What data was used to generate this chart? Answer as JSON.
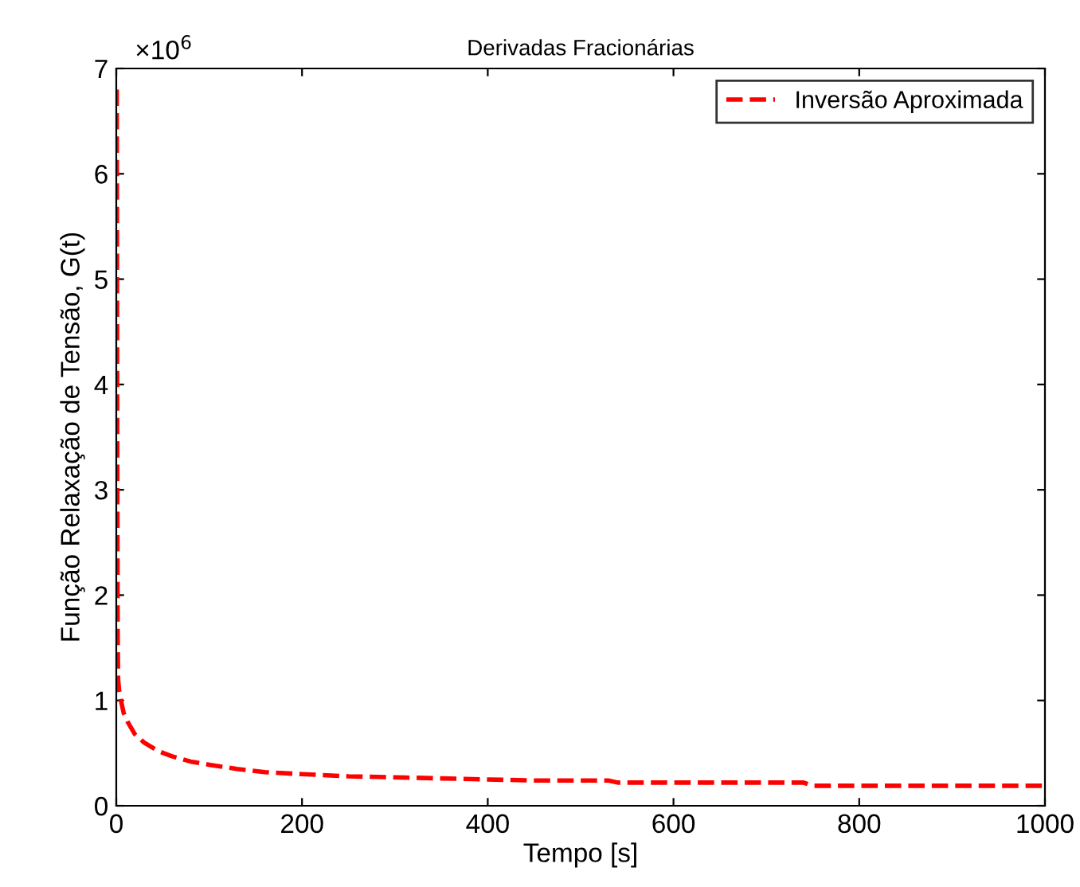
{
  "chart_data": {
    "type": "line",
    "title": "Derivadas Fracionárias",
    "xlabel": "Tempo [s]",
    "ylabel": "Função Relaxação de Tensão, G(t)",
    "annotations": [
      "×10$^{6}$"
    ],
    "series": [
      {
        "name": "Inversão Aproximada",
        "color": "#ff0000",
        "x": [
          0.5,
          1,
          1.5,
          2,
          3,
          5,
          8,
          12,
          20,
          30,
          45,
          60,
          80,
          100,
          130,
          160,
          200,
          250,
          300,
          350,
          400,
          450,
          530,
          540,
          600,
          700,
          740,
          750,
          800,
          900,
          1000
        ],
        "values": [
          6.8,
          3.5,
          1.6,
          1.2,
          1.1,
          1.0,
          0.88,
          0.8,
          0.68,
          0.6,
          0.52,
          0.47,
          0.42,
          0.39,
          0.35,
          0.32,
          0.3,
          0.28,
          0.27,
          0.26,
          0.25,
          0.24,
          0.24,
          0.22,
          0.22,
          0.22,
          0.22,
          0.19,
          0.19,
          0.19,
          0.19
        ]
      }
    ],
    "xlim": [
      0,
      1000
    ],
    "xticks": [
      0,
      200,
      400,
      600,
      800,
      1000
    ],
    "ylim": [
      0,
      7
    ],
    "yticks": [
      0,
      1,
      2,
      3,
      4,
      5,
      6,
      7
    ],
    "legend": "top right",
    "line_style": "dashed",
    "grid": false
  }
}
